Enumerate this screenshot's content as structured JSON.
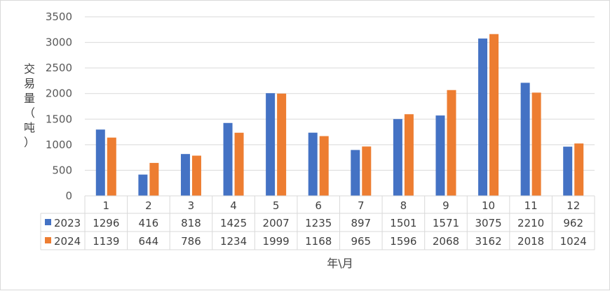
{
  "chart_data": {
    "type": "bar",
    "categories": [
      "1",
      "2",
      "3",
      "4",
      "5",
      "6",
      "7",
      "8",
      "9",
      "10",
      "11",
      "12"
    ],
    "series": [
      {
        "name": "2023",
        "color": "#4472C4",
        "values": [
          1296,
          416,
          818,
          1425,
          2007,
          1235,
          897,
          1501,
          1571,
          3075,
          2210,
          962
        ]
      },
      {
        "name": "2024",
        "color": "#ED7D31",
        "values": [
          1139,
          644,
          786,
          1234,
          1999,
          1168,
          965,
          1596,
          2068,
          3162,
          2018,
          1024
        ]
      }
    ],
    "ylim": [
      0,
      3500
    ],
    "yticks": [
      "0",
      "500",
      "1000",
      "1500",
      "2000",
      "2500",
      "3000",
      "3500"
    ],
    "ylabel": "交易量（吨）",
    "xlabel": "年\\月",
    "grid": true,
    "legend": "data-table",
    "has_data_table": true
  }
}
